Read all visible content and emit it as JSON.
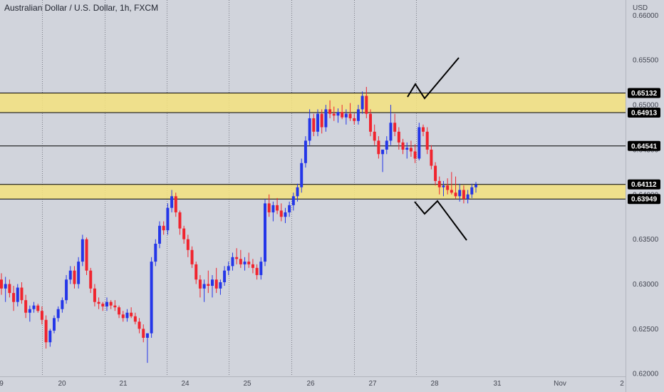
{
  "title": "Australian Dollar / U.S. Dollar, 1h, FXCM",
  "currency": "USD",
  "colors": {
    "background": "#d1d4dc",
    "up": "#2436e8",
    "down": "#f0242e",
    "zone": "#f5e27e",
    "line": "#000000",
    "tag": "#000000",
    "grid": "#434651"
  },
  "chart_data": {
    "type": "candlestick",
    "ylim": [
      0.6197,
      0.6617
    ],
    "price_ticks": [
      "0.66000",
      "0.65500",
      "0.65000",
      "0.64500",
      "0.64000",
      "0.63500",
      "0.63000",
      "0.62500",
      "0.62000"
    ],
    "time_ticks": [
      {
        "label": "9",
        "x": 0
      },
      {
        "label": "20",
        "x": 1
      },
      {
        "label": "21",
        "x": 2
      },
      {
        "label": "24",
        "x": 3
      },
      {
        "label": "25",
        "x": 4
      },
      {
        "label": "26",
        "x": 5
      },
      {
        "label": "27",
        "x": 6
      },
      {
        "label": "28",
        "x": 7
      },
      {
        "label": "31",
        "x": 8
      },
      {
        "label": "Nov",
        "x": 9
      },
      {
        "label": "2",
        "x": 10
      }
    ],
    "zones": [
      {
        "top": 0.65132,
        "bottom": 0.64913
      },
      {
        "top": 0.64112,
        "bottom": 0.63949
      }
    ],
    "levels": [
      0.64541
    ],
    "price_tags": [
      "0.65132",
      "0.64913",
      "0.64541",
      "0.64112",
      "0.63949"
    ],
    "candles": [
      [
        0.6305,
        0.6312,
        0.6288,
        0.6295
      ],
      [
        0.6295,
        0.6308,
        0.628,
        0.63
      ],
      [
        0.63,
        0.6305,
        0.6285,
        0.629
      ],
      [
        0.629,
        0.6298,
        0.627,
        0.628
      ],
      [
        0.628,
        0.63,
        0.6275,
        0.6296
      ],
      [
        0.6296,
        0.6302,
        0.6278,
        0.6282
      ],
      [
        0.6282,
        0.6288,
        0.6262,
        0.6268
      ],
      [
        0.6268,
        0.6276,
        0.6258,
        0.6272
      ],
      [
        0.6272,
        0.628,
        0.6268,
        0.6276
      ],
      [
        0.6276,
        0.6278,
        0.6268,
        0.627
      ],
      [
        0.627,
        0.6275,
        0.6255,
        0.626
      ],
      [
        0.626,
        0.6265,
        0.6228,
        0.6235
      ],
      [
        0.6235,
        0.625,
        0.623,
        0.6248
      ],
      [
        0.6248,
        0.6265,
        0.6245,
        0.6262
      ],
      [
        0.6262,
        0.6275,
        0.6258,
        0.6272
      ],
      [
        0.6272,
        0.6285,
        0.6268,
        0.6282
      ],
      [
        0.6282,
        0.631,
        0.6278,
        0.6305
      ],
      [
        0.6305,
        0.632,
        0.63,
        0.6315
      ],
      [
        0.6315,
        0.632,
        0.6295,
        0.63
      ],
      [
        0.63,
        0.633,
        0.6295,
        0.6325
      ],
      [
        0.6325,
        0.6355,
        0.632,
        0.635
      ],
      [
        0.635,
        0.6352,
        0.631,
        0.6315
      ],
      [
        0.6315,
        0.6318,
        0.629,
        0.6295
      ],
      [
        0.6295,
        0.63,
        0.6275,
        0.628
      ],
      [
        0.628,
        0.6285,
        0.6272,
        0.6278
      ],
      [
        0.6278,
        0.628,
        0.627,
        0.6275
      ],
      [
        0.6275,
        0.6285,
        0.627,
        0.628
      ],
      [
        0.628,
        0.6282,
        0.6272,
        0.6276
      ],
      [
        0.6276,
        0.6282,
        0.627,
        0.6274
      ],
      [
        0.6274,
        0.6276,
        0.6262,
        0.6266
      ],
      [
        0.6266,
        0.627,
        0.6258,
        0.6262
      ],
      [
        0.6262,
        0.6272,
        0.6258,
        0.6268
      ],
      [
        0.6268,
        0.6274,
        0.6262,
        0.6264
      ],
      [
        0.6264,
        0.6268,
        0.6255,
        0.6258
      ],
      [
        0.6258,
        0.6262,
        0.6245,
        0.625
      ],
      [
        0.625,
        0.6255,
        0.6235,
        0.624
      ],
      [
        0.624,
        0.6245,
        0.6212,
        0.6245
      ],
      [
        0.6245,
        0.633,
        0.624,
        0.6325
      ],
      [
        0.6325,
        0.635,
        0.632,
        0.6345
      ],
      [
        0.6345,
        0.637,
        0.634,
        0.6365
      ],
      [
        0.6365,
        0.637,
        0.6355,
        0.636
      ],
      [
        0.636,
        0.639,
        0.6355,
        0.6385
      ],
      [
        0.6385,
        0.6405,
        0.638,
        0.6398
      ],
      [
        0.6398,
        0.6402,
        0.6375,
        0.638
      ],
      [
        0.638,
        0.6382,
        0.6355,
        0.6362
      ],
      [
        0.6362,
        0.6365,
        0.6345,
        0.635
      ],
      [
        0.635,
        0.6355,
        0.633,
        0.6338
      ],
      [
        0.6338,
        0.6342,
        0.6318,
        0.6322
      ],
      [
        0.6322,
        0.6325,
        0.63,
        0.6305
      ],
      [
        0.6305,
        0.631,
        0.6285,
        0.6295
      ],
      [
        0.6295,
        0.6305,
        0.628,
        0.63
      ],
      [
        0.63,
        0.6315,
        0.629,
        0.6298
      ],
      [
        0.6298,
        0.631,
        0.6285,
        0.6305
      ],
      [
        0.6305,
        0.6318,
        0.629,
        0.6295
      ],
      [
        0.6295,
        0.6305,
        0.6288,
        0.6302
      ],
      [
        0.6302,
        0.632,
        0.6298,
        0.6315
      ],
      [
        0.6315,
        0.6325,
        0.631,
        0.632
      ],
      [
        0.632,
        0.6335,
        0.6315,
        0.633
      ],
      [
        0.633,
        0.634,
        0.6322,
        0.6328
      ],
      [
        0.6328,
        0.6338,
        0.6318,
        0.6322
      ],
      [
        0.6322,
        0.633,
        0.6315,
        0.6325
      ],
      [
        0.6325,
        0.6335,
        0.6318,
        0.6322
      ],
      [
        0.6322,
        0.6328,
        0.6312,
        0.6318
      ],
      [
        0.6318,
        0.6322,
        0.6305,
        0.631
      ],
      [
        0.631,
        0.633,
        0.6305,
        0.6325
      ],
      [
        0.6325,
        0.6395,
        0.632,
        0.639
      ],
      [
        0.639,
        0.64,
        0.6375,
        0.638
      ],
      [
        0.638,
        0.6392,
        0.637,
        0.6388
      ],
      [
        0.6388,
        0.6396,
        0.6378,
        0.6382
      ],
      [
        0.6382,
        0.639,
        0.637,
        0.6375
      ],
      [
        0.6375,
        0.6385,
        0.6368,
        0.638
      ],
      [
        0.638,
        0.6392,
        0.6375,
        0.6388
      ],
      [
        0.6388,
        0.6402,
        0.6382,
        0.6398
      ],
      [
        0.6398,
        0.6412,
        0.6392,
        0.6408
      ],
      [
        0.6408,
        0.644,
        0.6402,
        0.6435
      ],
      [
        0.6435,
        0.6465,
        0.643,
        0.646
      ],
      [
        0.646,
        0.6495,
        0.6455,
        0.6485
      ],
      [
        0.6485,
        0.649,
        0.6465,
        0.647
      ],
      [
        0.647,
        0.6495,
        0.6465,
        0.649
      ],
      [
        0.649,
        0.6495,
        0.6468,
        0.6475
      ],
      [
        0.6475,
        0.65,
        0.647,
        0.6495
      ],
      [
        0.6495,
        0.6505,
        0.6485,
        0.649
      ],
      [
        0.649,
        0.6498,
        0.6482,
        0.6488
      ],
      [
        0.6488,
        0.6496,
        0.648,
        0.6492
      ],
      [
        0.6492,
        0.65,
        0.6484,
        0.6486
      ],
      [
        0.6486,
        0.6495,
        0.6478,
        0.649
      ],
      [
        0.649,
        0.6502,
        0.6482,
        0.6485
      ],
      [
        0.6485,
        0.649,
        0.6478,
        0.6482
      ],
      [
        0.6482,
        0.65,
        0.6478,
        0.6495
      ],
      [
        0.6495,
        0.6515,
        0.649,
        0.651
      ],
      [
        0.651,
        0.652,
        0.6485,
        0.649
      ],
      [
        0.649,
        0.6495,
        0.6465,
        0.647
      ],
      [
        0.647,
        0.6478,
        0.6455,
        0.646
      ],
      [
        0.646,
        0.6465,
        0.644,
        0.6445
      ],
      [
        0.6445,
        0.645,
        0.6425,
        0.645
      ],
      [
        0.645,
        0.6465,
        0.6445,
        0.646
      ],
      [
        0.646,
        0.65,
        0.6455,
        0.648
      ],
      [
        0.648,
        0.649,
        0.6465,
        0.647
      ],
      [
        0.647,
        0.6475,
        0.645,
        0.6458
      ],
      [
        0.6458,
        0.6462,
        0.6445,
        0.645
      ],
      [
        0.645,
        0.6458,
        0.644,
        0.6452
      ],
      [
        0.6452,
        0.646,
        0.6442,
        0.6448
      ],
      [
        0.6448,
        0.6456,
        0.6435,
        0.644
      ],
      [
        0.644,
        0.648,
        0.6438,
        0.6475
      ],
      [
        0.6475,
        0.6478,
        0.6465,
        0.647
      ],
      [
        0.647,
        0.6475,
        0.6445,
        0.645
      ],
      [
        0.645,
        0.6455,
        0.6428,
        0.6432
      ],
      [
        0.6432,
        0.6436,
        0.641,
        0.6415
      ],
      [
        0.6415,
        0.642,
        0.64,
        0.6408
      ],
      [
        0.6408,
        0.6415,
        0.6398,
        0.641
      ],
      [
        0.641,
        0.6418,
        0.64,
        0.6405
      ],
      [
        0.6405,
        0.6425,
        0.64,
        0.6402
      ],
      [
        0.6402,
        0.642,
        0.6395,
        0.6398
      ],
      [
        0.6398,
        0.6412,
        0.6392,
        0.6405
      ],
      [
        0.6405,
        0.641,
        0.639,
        0.6395
      ],
      [
        0.6395,
        0.6405,
        0.639,
        0.64
      ],
      [
        0.64,
        0.6412,
        0.6396,
        0.6408
      ],
      [
        0.6408,
        0.6414,
        0.6402,
        0.6411
      ]
    ]
  }
}
